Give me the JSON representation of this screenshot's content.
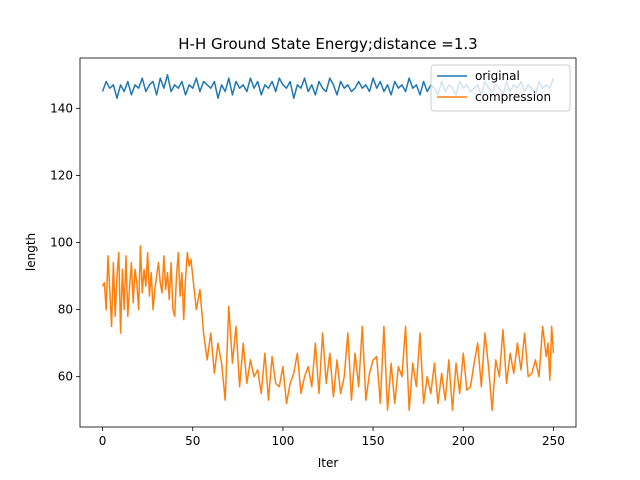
{
  "chart_data": {
    "type": "line",
    "title": "H-H Ground State Energy;distance =1.3",
    "xlabel": "Iter",
    "ylabel": "length",
    "xlim": [
      -12.5,
      262.5
    ],
    "ylim": [
      45,
      155
    ],
    "xticks": [
      0,
      50,
      100,
      150,
      200,
      250
    ],
    "yticks": [
      60,
      80,
      100,
      120,
      140
    ],
    "grid": false,
    "legend_position": "top-right",
    "series": [
      {
        "name": "original",
        "color": "#1f77b4",
        "x": [
          0,
          2,
          4,
          6,
          8,
          10,
          12,
          14,
          16,
          18,
          20,
          22,
          24,
          26,
          28,
          30,
          32,
          34,
          36,
          38,
          40,
          42,
          44,
          46,
          48,
          50,
          52,
          54,
          56,
          58,
          60,
          62,
          64,
          66,
          68,
          70,
          72,
          74,
          76,
          78,
          80,
          82,
          84,
          86,
          88,
          90,
          92,
          94,
          96,
          98,
          100,
          102,
          104,
          106,
          108,
          110,
          112,
          114,
          116,
          118,
          120,
          122,
          124,
          126,
          128,
          130,
          132,
          134,
          136,
          138,
          140,
          142,
          144,
          146,
          148,
          150,
          152,
          154,
          156,
          158,
          160,
          162,
          164,
          166,
          168,
          170,
          172,
          174,
          176,
          178,
          180,
          182,
          184,
          186,
          188,
          190,
          192,
          194,
          196,
          198,
          200,
          202,
          204,
          206,
          208,
          210,
          212,
          214,
          216,
          218,
          220,
          222,
          224,
          226,
          228,
          230,
          232,
          234,
          236,
          238,
          240,
          242,
          244,
          246,
          248,
          250
        ],
        "values": [
          145,
          148,
          146,
          147,
          143,
          147,
          145,
          148,
          144,
          147,
          146,
          149,
          145,
          147,
          148,
          144,
          149,
          146,
          150,
          145,
          147,
          146,
          148,
          144,
          147,
          146,
          149,
          145,
          148,
          147,
          146,
          148,
          143,
          147,
          145,
          149,
          144,
          148,
          146,
          147,
          145,
          149,
          146,
          148,
          144,
          147,
          146,
          148,
          145,
          149,
          147,
          146,
          148,
          143,
          147,
          146,
          149,
          145,
          147,
          144,
          148,
          146,
          145,
          149,
          147,
          144,
          148,
          146,
          147,
          145,
          146,
          148,
          146,
          147,
          145,
          149,
          146,
          148,
          145,
          147,
          144,
          148,
          146,
          147,
          145,
          149,
          146,
          147,
          144,
          148,
          145,
          147,
          146,
          144,
          148,
          145,
          147,
          146,
          144,
          148,
          146,
          147,
          145,
          146,
          147,
          144,
          148,
          146,
          145,
          147,
          146,
          144,
          148,
          145,
          147,
          146,
          148,
          145,
          147,
          146,
          144,
          148,
          146,
          147,
          146,
          149
        ]
      },
      {
        "name": "compression",
        "color": "#ff7f0e",
        "x": [
          0,
          1,
          2,
          3,
          4,
          5,
          6,
          7,
          8,
          9,
          10,
          11,
          12,
          13,
          14,
          15,
          16,
          17,
          18,
          19,
          20,
          21,
          22,
          23,
          24,
          25,
          26,
          27,
          28,
          29,
          30,
          31,
          32,
          33,
          34,
          35,
          36,
          37,
          38,
          39,
          40,
          41,
          42,
          43,
          44,
          45,
          46,
          47,
          48,
          49,
          50,
          52,
          54,
          56,
          58,
          60,
          62,
          64,
          66,
          68,
          70,
          72,
          74,
          76,
          78,
          80,
          82,
          84,
          86,
          88,
          90,
          92,
          94,
          96,
          98,
          100,
          102,
          104,
          106,
          108,
          110,
          112,
          114,
          116,
          118,
          120,
          122,
          124,
          126,
          128,
          130,
          132,
          134,
          136,
          138,
          140,
          142,
          144,
          146,
          148,
          150,
          152,
          154,
          156,
          158,
          160,
          162,
          164,
          166,
          168,
          170,
          172,
          174,
          176,
          178,
          180,
          182,
          184,
          186,
          188,
          190,
          192,
          194,
          196,
          198,
          200,
          202,
          204,
          206,
          208,
          210,
          212,
          214,
          216,
          218,
          220,
          222,
          224,
          226,
          228,
          230,
          232,
          234,
          236,
          238,
          240,
          242,
          244,
          246,
          247,
          248,
          249,
          250
        ],
        "values": [
          87,
          88,
          80,
          96,
          86,
          75,
          94,
          78,
          90,
          97,
          73,
          92,
          80,
          96,
          78,
          87,
          94,
          82,
          92,
          88,
          80,
          99,
          85,
          92,
          87,
          97,
          84,
          91,
          80,
          86,
          90,
          94,
          88,
          85,
          96,
          86,
          91,
          83,
          94,
          80,
          78,
          90,
          97,
          84,
          91,
          77,
          89,
          97,
          93,
          95,
          90,
          80,
          86,
          73,
          65,
          73,
          61,
          70,
          64,
          53,
          81,
          64,
          75,
          57,
          70,
          58,
          65,
          60,
          62,
          55,
          67,
          53,
          66,
          58,
          57,
          63,
          52,
          58,
          61,
          67,
          55,
          60,
          63,
          57,
          70,
          55,
          73,
          58,
          67,
          54,
          65,
          55,
          60,
          73,
          53,
          67,
          57,
          75,
          53,
          61,
          65,
          66,
          52,
          75,
          50,
          64,
          52,
          63,
          60,
          75,
          50,
          64,
          57,
          73,
          52,
          60,
          55,
          64,
          52,
          61,
          53,
          65,
          50,
          64,
          55,
          67,
          56,
          57,
          64,
          70,
          57,
          73,
          63,
          50,
          65,
          60,
          74,
          58,
          67,
          61,
          70,
          62,
          73,
          60,
          61,
          65,
          60,
          75,
          66,
          70,
          59,
          75,
          67
        ]
      }
    ]
  }
}
